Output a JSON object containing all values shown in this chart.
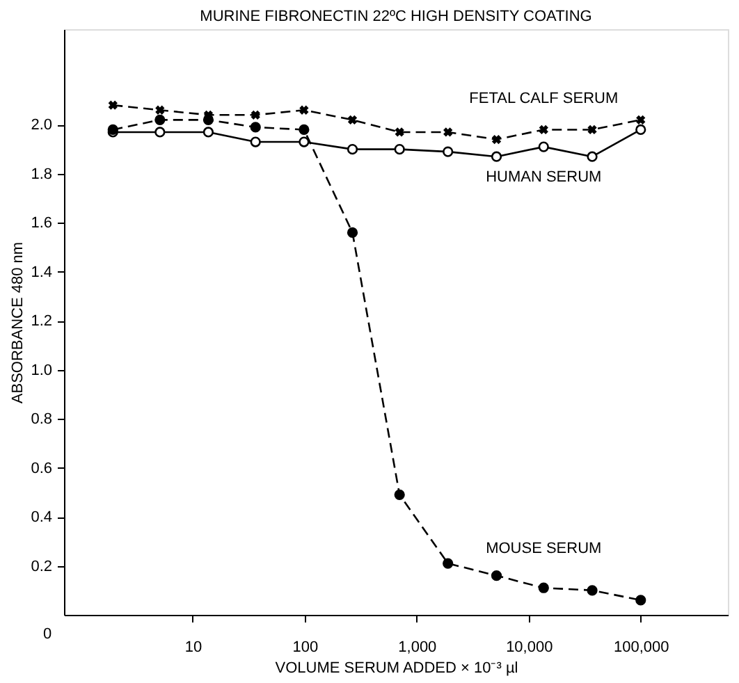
{
  "chart_data": {
    "type": "line",
    "title": "MURINE FIBRONECTIN 22ºC HIGH DENSITY COATING",
    "xlabel": "VOLUME SERUM ADDED × 10⁻³ µl",
    "ylabel": "ABSORBANCE 480 nm",
    "log": "x",
    "x": [
      1.94,
      5.1,
      13.8,
      36.4,
      98.6,
      267,
      703,
      1900,
      5160,
      13600,
      36900,
      100000
    ],
    "series": [
      {
        "name": "FETAL CALF SERUM",
        "color": "#000000",
        "marker": "cross",
        "line_style": "dashed",
        "values": [
          2.08,
          2.06,
          2.04,
          2.04,
          2.06,
          2.02,
          1.97,
          1.97,
          1.94,
          1.98,
          1.98,
          2.02
        ]
      },
      {
        "name": "HUMAN SERUM",
        "color": "#000000",
        "marker": "circle",
        "line_style": "solid",
        "values": [
          1.97,
          1.97,
          1.97,
          1.93,
          1.93,
          1.9,
          1.9,
          1.89,
          1.87,
          1.91,
          1.87,
          1.98
        ]
      },
      {
        "name": "MOUSE SERUM",
        "color": "#000000",
        "marker": "circle",
        "line_style": "dashed",
        "values": [
          1.98,
          2.02,
          2.02,
          1.99,
          1.98,
          1.56,
          0.49,
          0.21,
          0.16,
          0.11,
          0.1,
          0.06
        ]
      }
    ],
    "annotations": [
      "0"
    ],
    "xlim": [
      0.71,
      600000
    ],
    "xticks": [
      10,
      100,
      {
        "value": 1000,
        "label": "1,000"
      },
      {
        "value": 10000,
        "label": "10,000"
      },
      {
        "value": 100000,
        "label": "100,000"
      }
    ],
    "ylim": [
      0,
      2.39
    ],
    "yticks": [
      {
        "value": 0.2,
        "label": "0.2"
      },
      {
        "value": 0.4,
        "label": "0.4"
      },
      {
        "value": 0.6,
        "label": "0.6"
      },
      {
        "value": 0.8,
        "label": "0.8"
      },
      {
        "value": 1.0,
        "label": "1.0"
      },
      {
        "value": 1.2,
        "label": "1.2"
      },
      {
        "value": 1.4,
        "label": "1.4"
      },
      {
        "value": 1.6,
        "label": "1.6"
      },
      {
        "value": 1.8,
        "label": "1.8"
      },
      {
        "value": 2.0,
        "label": "2.0"
      }
    ],
    "grid": false
  }
}
